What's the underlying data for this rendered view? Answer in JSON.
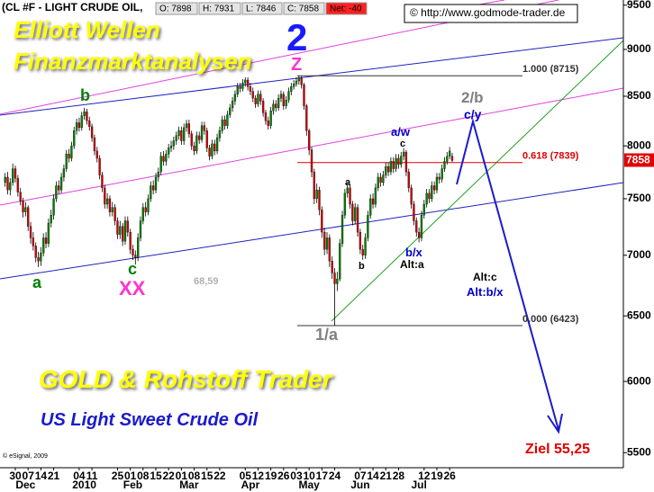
{
  "header": {
    "symbol": "(CL #F - LIGHT CRUDE OIL,",
    "open": "O: 7898",
    "high": "H: 7931",
    "low": "L: 7846",
    "close": "C: 7858",
    "net": "Net: -40"
  },
  "source": "© http://www.godmode-trader.de",
  "copyright": "© eSignal, 2009",
  "chart_data": {
    "type": "candlestick",
    "up_color": "#008000",
    "down_color": "#cc0000",
    "log_scale": true,
    "ylim": [
      5400,
      9560
    ],
    "yticks": [
      5500,
      6000,
      6500,
      7000,
      7500,
      8000,
      8500,
      9000,
      9500
    ],
    "xlim": [
      -2,
      242
    ],
    "xticks": [
      {
        "value": 4,
        "label": "30"
      },
      {
        "value": 9,
        "label": "07"
      },
      {
        "value": 14,
        "label": "14"
      },
      {
        "value": 19,
        "label": "21"
      },
      {
        "value": 29,
        "label": "04"
      },
      {
        "value": 34,
        "label": "11"
      },
      {
        "value": 44,
        "label": "25"
      },
      {
        "value": 49,
        "label": "01"
      },
      {
        "value": 54,
        "label": "08"
      },
      {
        "value": 59,
        "label": "15"
      },
      {
        "value": 64,
        "label": "22"
      },
      {
        "value": 69,
        "label": "01"
      },
      {
        "value": 74,
        "label": "08"
      },
      {
        "value": 79,
        "label": "15"
      },
      {
        "value": 84,
        "label": "22"
      },
      {
        "value": 94,
        "label": "05"
      },
      {
        "value": 99,
        "label": "12"
      },
      {
        "value": 104,
        "label": "19"
      },
      {
        "value": 109,
        "label": "26"
      },
      {
        "value": 114,
        "label": "03"
      },
      {
        "value": 119,
        "label": "10"
      },
      {
        "value": 124,
        "label": "17"
      },
      {
        "value": 129,
        "label": "24"
      },
      {
        "value": 139,
        "label": "07"
      },
      {
        "value": 144,
        "label": "14"
      },
      {
        "value": 149,
        "label": "21"
      },
      {
        "value": 154,
        "label": "28"
      },
      {
        "value": 164,
        "label": "12"
      },
      {
        "value": 169,
        "label": "19"
      },
      {
        "value": 174,
        "label": "26"
      }
    ],
    "month_labels": [
      {
        "value": 8,
        "label": "Dec"
      },
      {
        "value": 31,
        "label": "2010"
      },
      {
        "value": 50,
        "label": "Feb"
      },
      {
        "value": 72,
        "label": "Mar"
      },
      {
        "value": 96,
        "label": "Apr"
      },
      {
        "value": 119,
        "label": "May"
      },
      {
        "value": 139,
        "label": "Jun"
      },
      {
        "value": 162,
        "label": "Jul"
      }
    ],
    "last_price": 7858,
    "levels": [
      {
        "value": 8715,
        "label": "1.000 (8715)",
        "color": "#333333"
      },
      {
        "value": 7839,
        "label": "0.618 (7839)",
        "color": "#e00000"
      },
      {
        "value": 6423,
        "label": "0.000 (6423)",
        "color": "#333333"
      }
    ],
    "annotations": [
      {
        "text": "Elliott Wellen",
        "color": "#ffff00"
      },
      {
        "text": "Finanzmarktanalysen",
        "color": "#ffff00"
      },
      {
        "text": "2",
        "color": "#1a1aff"
      },
      {
        "text": "Z",
        "color": "#ff33cc"
      },
      {
        "text": "b",
        "color": "#008000"
      },
      {
        "text": "a",
        "color": "#008000"
      },
      {
        "text": "c",
        "color": "#008000"
      },
      {
        "text": "XX",
        "color": "#ff33cc"
      },
      {
        "text": "68,59",
        "color": "#b0b0b0"
      },
      {
        "text": "1/a",
        "color": "#808080"
      },
      {
        "text": "a",
        "color": "#000000"
      },
      {
        "text": "b",
        "color": "#000000"
      },
      {
        "text": "c",
        "color": "#000000"
      },
      {
        "text": "a/w",
        "color": "#0000cc"
      },
      {
        "text": "b/x",
        "color": "#0000cc"
      },
      {
        "text": "Alt:a",
        "color": "#000000"
      },
      {
        "text": "2/b",
        "color": "#808080"
      },
      {
        "text": "c/y",
        "color": "#0000cc"
      },
      {
        "text": "Alt:c",
        "color": "#000000"
      },
      {
        "text": "Alt:b/x",
        "color": "#0000cc"
      },
      {
        "text": "Ziel 55,25",
        "color": "#e00000"
      },
      {
        "text": "GOLD & Rohstoff Trader",
        "color": "#ffff00"
      },
      {
        "text": "US Light Sweet Crude Oil",
        "color": "#1a1acc"
      }
    ],
    "candles": [
      [
        7650,
        7740,
        7610,
        7700
      ],
      [
        7700,
        7750,
        7540,
        7580
      ],
      [
        7580,
        7690,
        7530,
        7650
      ],
      [
        7650,
        7830,
        7620,
        7780
      ],
      [
        7780,
        7810,
        7650,
        7690
      ],
      [
        7690,
        7720,
        7520,
        7560
      ],
      [
        7560,
        7600,
        7440,
        7480
      ],
      [
        7480,
        7510,
        7330,
        7380
      ],
      [
        7380,
        7470,
        7340,
        7420
      ],
      [
        7420,
        7440,
        7210,
        7250
      ],
      [
        7250,
        7290,
        7100,
        7150
      ],
      [
        7150,
        7200,
        7040,
        7080
      ],
      [
        7080,
        7110,
        6940,
        6980
      ],
      [
        6980,
        7030,
        6900,
        6950
      ],
      [
        6950,
        7070,
        6910,
        7020
      ],
      [
        7020,
        7190,
        6990,
        7150
      ],
      [
        7150,
        7200,
        7060,
        7100
      ],
      [
        7100,
        7320,
        7070,
        7280
      ],
      [
        7280,
        7400,
        7240,
        7350
      ],
      [
        7350,
        7540,
        7310,
        7500
      ],
      [
        7500,
        7660,
        7470,
        7620
      ],
      [
        7620,
        7670,
        7540,
        7580
      ],
      [
        7580,
        7740,
        7550,
        7700
      ],
      [
        7700,
        7820,
        7660,
        7780
      ],
      [
        7780,
        7960,
        7750,
        7920
      ],
      [
        7920,
        7970,
        7840,
        7880
      ],
      [
        7880,
        8040,
        7850,
        8000
      ],
      [
        8000,
        8190,
        7970,
        8150
      ],
      [
        8150,
        8270,
        8110,
        8230
      ],
      [
        8230,
        8280,
        8140,
        8180
      ],
      [
        8180,
        8340,
        8150,
        8300
      ],
      [
        8300,
        8380,
        8260,
        8340
      ],
      [
        8340,
        8370,
        8210,
        8250
      ],
      [
        8250,
        8290,
        8150,
        8190
      ],
      [
        8190,
        8220,
        8040,
        8080
      ],
      [
        8080,
        8110,
        7910,
        7950
      ],
      [
        7950,
        7990,
        7840,
        7880
      ],
      [
        7880,
        7910,
        7680,
        7720
      ],
      [
        7720,
        7750,
        7560,
        7600
      ],
      [
        7600,
        7630,
        7410,
        7450
      ],
      [
        7450,
        7550,
        7410,
        7500
      ],
      [
        7500,
        7530,
        7340,
        7380
      ],
      [
        7380,
        7470,
        7340,
        7420
      ],
      [
        7420,
        7450,
        7260,
        7300
      ],
      [
        7300,
        7330,
        7140,
        7180
      ],
      [
        7180,
        7300,
        7140,
        7250
      ],
      [
        7250,
        7280,
        7080,
        7120
      ],
      [
        7120,
        7340,
        7090,
        7300
      ],
      [
        7300,
        7340,
        7160,
        7200
      ],
      [
        7200,
        7230,
        7010,
        7050
      ],
      [
        7050,
        7090,
        6960,
        7000
      ],
      [
        7000,
        7040,
        6920,
        6980
      ],
      [
        6980,
        7190,
        6950,
        7150
      ],
      [
        7150,
        7340,
        7120,
        7300
      ],
      [
        7300,
        7460,
        7270,
        7420
      ],
      [
        7420,
        7470,
        7340,
        7380
      ],
      [
        7380,
        7540,
        7350,
        7500
      ],
      [
        7500,
        7660,
        7470,
        7620
      ],
      [
        7620,
        7670,
        7540,
        7580
      ],
      [
        7580,
        7740,
        7550,
        7700
      ],
      [
        7700,
        7790,
        7660,
        7750
      ],
      [
        7750,
        7940,
        7720,
        7900
      ],
      [
        7900,
        7950,
        7810,
        7850
      ],
      [
        7850,
        7960,
        7810,
        7920
      ],
      [
        7920,
        8020,
        7880,
        7980
      ],
      [
        7980,
        8050,
        7940,
        8000
      ],
      [
        8000,
        8090,
        7960,
        8050
      ],
      [
        8050,
        8140,
        8010,
        8100
      ],
      [
        8100,
        8190,
        8060,
        8150
      ],
      [
        8150,
        8190,
        8010,
        8050
      ],
      [
        8050,
        8220,
        8010,
        8180
      ],
      [
        8180,
        8260,
        8140,
        8220
      ],
      [
        8220,
        8260,
        8080,
        8120
      ],
      [
        8120,
        8150,
        7960,
        8000
      ],
      [
        8000,
        8040,
        7910,
        7950
      ],
      [
        7950,
        8140,
        7920,
        8100
      ],
      [
        8100,
        8140,
        8020,
        8060
      ],
      [
        8060,
        8240,
        8030,
        8200
      ],
      [
        8200,
        8240,
        8110,
        8150
      ],
      [
        8150,
        8180,
        7940,
        7980
      ],
      [
        7980,
        8010,
        7860,
        7900
      ],
      [
        7900,
        8060,
        7870,
        8020
      ],
      [
        8020,
        8060,
        7910,
        7950
      ],
      [
        7950,
        8120,
        7920,
        8080
      ],
      [
        8080,
        8190,
        8040,
        8150
      ],
      [
        8150,
        8300,
        8120,
        8260
      ],
      [
        8260,
        8300,
        8160,
        8200
      ],
      [
        8200,
        8350,
        8170,
        8310
      ],
      [
        8310,
        8420,
        8280,
        8380
      ],
      [
        8380,
        8490,
        8340,
        8450
      ],
      [
        8450,
        8560,
        8410,
        8520
      ],
      [
        8520,
        8640,
        8490,
        8600
      ],
      [
        8600,
        8640,
        8540,
        8580
      ],
      [
        8580,
        8680,
        8550,
        8640
      ],
      [
        8640,
        8700,
        8600,
        8670
      ],
      [
        8670,
        8700,
        8560,
        8600
      ],
      [
        8600,
        8640,
        8510,
        8550
      ],
      [
        8550,
        8590,
        8440,
        8480
      ],
      [
        8480,
        8510,
        8380,
        8420
      ],
      [
        8420,
        8560,
        8390,
        8520
      ],
      [
        8520,
        8560,
        8410,
        8450
      ],
      [
        8450,
        8480,
        8290,
        8330
      ],
      [
        8330,
        8360,
        8210,
        8250
      ],
      [
        8250,
        8290,
        8160,
        8200
      ],
      [
        8200,
        8390,
        8170,
        8350
      ],
      [
        8350,
        8460,
        8310,
        8420
      ],
      [
        8420,
        8460,
        8340,
        8380
      ],
      [
        8380,
        8520,
        8350,
        8480
      ],
      [
        8480,
        8560,
        8440,
        8520
      ],
      [
        8520,
        8550,
        8360,
        8400
      ],
      [
        8400,
        8500,
        8370,
        8460
      ],
      [
        8460,
        8590,
        8430,
        8550
      ],
      [
        8550,
        8640,
        8510,
        8600
      ],
      [
        8600,
        8670,
        8570,
        8630
      ],
      [
        8630,
        8700,
        8600,
        8660
      ],
      [
        8660,
        8715,
        8620,
        8690
      ],
      [
        8690,
        8710,
        8580,
        8620
      ],
      [
        8620,
        8640,
        8360,
        8400
      ],
      [
        8400,
        8420,
        8100,
        8150
      ],
      [
        8150,
        8170,
        7910,
        7960
      ],
      [
        7960,
        7990,
        7700,
        7750
      ],
      [
        7750,
        7780,
        7450,
        7500
      ],
      [
        7500,
        7640,
        7460,
        7580
      ],
      [
        7580,
        7610,
        7350,
        7400
      ],
      [
        7400,
        7430,
        7150,
        7200
      ],
      [
        7200,
        7240,
        7000,
        7050
      ],
      [
        7050,
        7200,
        7010,
        7150
      ],
      [
        7150,
        7180,
        6900,
        6950
      ],
      [
        6950,
        6990,
        6800,
        6850
      ],
      [
        6850,
        6890,
        6423,
        6760
      ],
      [
        6760,
        6860,
        6700,
        6800
      ],
      [
        6800,
        7140,
        6780,
        7100
      ],
      [
        7100,
        7390,
        7070,
        7350
      ],
      [
        7350,
        7590,
        7320,
        7550
      ],
      [
        7550,
        7650,
        7510,
        7600
      ],
      [
        7600,
        7630,
        7410,
        7450
      ],
      [
        7450,
        7480,
        7260,
        7300
      ],
      [
        7300,
        7460,
        7270,
        7420
      ],
      [
        7420,
        7450,
        7160,
        7200
      ],
      [
        7200,
        7230,
        7010,
        7050
      ],
      [
        7050,
        7090,
        6960,
        7000
      ],
      [
        7000,
        7190,
        6970,
        7150
      ],
      [
        7150,
        7390,
        7120,
        7350
      ],
      [
        7350,
        7540,
        7320,
        7500
      ],
      [
        7500,
        7550,
        7410,
        7450
      ],
      [
        7450,
        7640,
        7420,
        7600
      ],
      [
        7600,
        7740,
        7570,
        7700
      ],
      [
        7700,
        7740,
        7610,
        7650
      ],
      [
        7650,
        7760,
        7620,
        7720
      ],
      [
        7720,
        7840,
        7690,
        7800
      ],
      [
        7800,
        7840,
        7710,
        7750
      ],
      [
        7750,
        7890,
        7720,
        7850
      ],
      [
        7850,
        7890,
        7740,
        7780
      ],
      [
        7780,
        7920,
        7750,
        7880
      ],
      [
        7880,
        7920,
        7780,
        7820
      ],
      [
        7820,
        7940,
        7790,
        7900
      ],
      [
        7900,
        7980,
        7860,
        7940
      ],
      [
        7940,
        7960,
        7710,
        7750
      ],
      [
        7750,
        7780,
        7560,
        7600
      ],
      [
        7600,
        7630,
        7410,
        7450
      ],
      [
        7450,
        7480,
        7260,
        7300
      ],
      [
        7300,
        7330,
        7160,
        7200
      ],
      [
        7200,
        7240,
        7110,
        7150
      ],
      [
        7150,
        7390,
        7120,
        7350
      ],
      [
        7350,
        7490,
        7320,
        7450
      ],
      [
        7450,
        7590,
        7420,
        7550
      ],
      [
        7550,
        7590,
        7460,
        7500
      ],
      [
        7500,
        7660,
        7470,
        7620
      ],
      [
        7620,
        7660,
        7540,
        7580
      ],
      [
        7580,
        7740,
        7550,
        7700
      ],
      [
        7700,
        7740,
        7640,
        7680
      ],
      [
        7680,
        7820,
        7650,
        7780
      ],
      [
        7780,
        7890,
        7750,
        7850
      ],
      [
        7850,
        7940,
        7820,
        7900
      ],
      [
        7900,
        7990,
        7870,
        7950
      ],
      [
        7898,
        7931,
        7846,
        7858
      ]
    ]
  }
}
